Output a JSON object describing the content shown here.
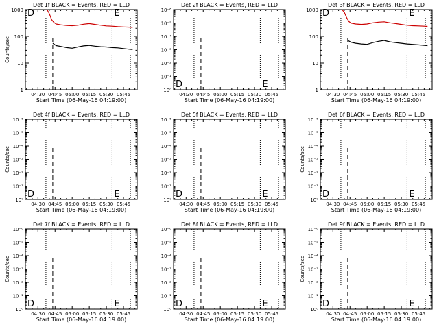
{
  "title_template": "Det {d}f BLACK = Events, RED = LLD",
  "xlabel": "Start Time (06-May-16 04:19:00)",
  "ylabel": "Counts/sec",
  "x_ticks": [
    "04:30",
    "04:45",
    "05:00",
    "05:15",
    "05:30",
    "05:45"
  ],
  "marker_left": "D",
  "marker_right": "E",
  "colors": {
    "events": "#000000",
    "lld": "#cc0000"
  },
  "chart_data": [
    {
      "type": "line",
      "title": "Det 1f BLACK = Events, RED = LLD",
      "xlabel": "Start Time (06-May-16 04:19:00)",
      "ylabel": "Counts/sec",
      "yscale": "log",
      "ylim": [
        1,
        1000
      ],
      "y_ticks": [
        "1",
        "10",
        "100",
        "1000"
      ],
      "xlim": [
        "04:19",
        "05:57"
      ],
      "vlines_dotted": [
        "04:37",
        "05:35",
        "05:51"
      ],
      "vlines_dashed": [
        "04:43"
      ],
      "series": [
        {
          "name": "Events",
          "color": "#000000",
          "x": [
            "04:43",
            "04:46",
            "04:50",
            "04:55",
            "05:00",
            "05:05",
            "05:10",
            "05:15",
            "05:20",
            "05:25",
            "05:30",
            "05:35",
            "05:40",
            "05:45",
            "05:50",
            "05:53"
          ],
          "y": [
            55,
            45,
            42,
            38,
            36,
            40,
            44,
            46,
            43,
            41,
            40,
            38,
            37,
            35,
            33,
            32
          ]
        },
        {
          "name": "LLD",
          "color": "#cc0000",
          "x": [
            "04:38",
            "04:40",
            "04:42",
            "04:44",
            "04:46",
            "04:50",
            "04:55",
            "05:00",
            "05:05",
            "05:10",
            "05:15",
            "05:20",
            "05:25",
            "05:30",
            "05:35",
            "05:40",
            "05:45",
            "05:50",
            "05:53"
          ],
          "y": [
            1000,
            700,
            420,
            330,
            290,
            270,
            255,
            250,
            260,
            285,
            300,
            280,
            260,
            245,
            240,
            230,
            225,
            220,
            215
          ]
        }
      ]
    },
    {
      "type": "line",
      "title": "Det 2f BLACK = Events, RED = LLD",
      "xlabel": "Start Time (06-May-16 04:19:00)",
      "ylabel": "",
      "yscale": "log",
      "ylim": [
        1,
        1e-06
      ],
      "y_ticks": [
        "10⁰",
        "10⁻¹",
        "10⁻²",
        "10⁻³",
        "10⁻⁴",
        "10⁻⁵",
        "10⁻⁶"
      ],
      "xlim": [
        "04:19",
        "05:57"
      ],
      "vlines_dotted": [
        "04:37",
        "05:35",
        "05:51"
      ],
      "vlines_dashed": [
        "04:43"
      ],
      "series": []
    },
    {
      "type": "line",
      "title": "Det 3f BLACK = Events, RED = LLD",
      "xlabel": "Start Time (06-May-16 04:19:00)",
      "ylabel": "",
      "yscale": "log",
      "ylim": [
        1,
        1000
      ],
      "y_ticks": [
        "1",
        "10",
        "100",
        "1000"
      ],
      "xlim": [
        "04:19",
        "05:57"
      ],
      "vlines_dotted": [
        "04:37",
        "05:35",
        "05:51"
      ],
      "vlines_dashed": [
        "04:43"
      ],
      "series": [
        {
          "name": "Events",
          "color": "#000000",
          "x": [
            "04:43",
            "04:46",
            "04:50",
            "04:55",
            "05:00",
            "05:05",
            "05:10",
            "05:15",
            "05:20",
            "05:25",
            "05:30",
            "05:35",
            "05:40",
            "05:45",
            "05:50",
            "05:53"
          ],
          "y": [
            70,
            60,
            55,
            52,
            50,
            58,
            65,
            70,
            62,
            58,
            55,
            52,
            50,
            48,
            46,
            45
          ]
        },
        {
          "name": "LLD",
          "color": "#cc0000",
          "x": [
            "04:38",
            "04:40",
            "04:42",
            "04:44",
            "04:46",
            "04:50",
            "04:55",
            "05:00",
            "05:05",
            "05:10",
            "05:15",
            "05:20",
            "05:25",
            "05:30",
            "05:35",
            "05:40",
            "05:45",
            "05:50",
            "05:53"
          ],
          "y": [
            1000,
            800,
            500,
            360,
            310,
            290,
            280,
            290,
            320,
            340,
            350,
            320,
            300,
            280,
            260,
            250,
            245,
            240,
            235
          ]
        }
      ]
    },
    {
      "type": "line",
      "title": "Det 4f BLACK = Events, RED = LLD",
      "xlabel": "Start Time (06-May-16 04:19:00)",
      "ylabel": "Counts/sec",
      "yscale": "log",
      "ylim": [
        1,
        1e-06
      ],
      "y_ticks": [
        "10⁰",
        "10⁻¹",
        "10⁻²",
        "10⁻³",
        "10⁻⁴",
        "10⁻⁵",
        "10⁻⁶"
      ],
      "xlim": [
        "04:19",
        "05:57"
      ],
      "vlines_dotted": [
        "04:37",
        "05:35",
        "05:51"
      ],
      "vlines_dashed": [
        "04:43"
      ],
      "series": []
    },
    {
      "type": "line",
      "title": "Det 5f BLACK = Events, RED = LLD",
      "xlabel": "Start Time (06-May-16 04:19:00)",
      "ylabel": "",
      "yscale": "log",
      "ylim": [
        1,
        1e-06
      ],
      "y_ticks": [
        "10⁰",
        "10⁻¹",
        "10⁻²",
        "10⁻³",
        "10⁻⁴",
        "10⁻⁵",
        "10⁻⁶"
      ],
      "xlim": [
        "04:19",
        "05:57"
      ],
      "vlines_dotted": [
        "04:37",
        "05:35",
        "05:51"
      ],
      "vlines_dashed": [
        "04:43"
      ],
      "series": []
    },
    {
      "type": "line",
      "title": "Det 6f BLACK = Events, RED = LLD",
      "xlabel": "Start Time (06-May-16 04:19:00)",
      "ylabel": "Counts/sec",
      "yscale": "log",
      "ylim": [
        1,
        1e-06
      ],
      "y_ticks": [
        "10⁰",
        "10⁻¹",
        "10⁻²",
        "10⁻³",
        "10⁻⁴",
        "10⁻⁵",
        "10⁻⁶"
      ],
      "xlim": [
        "04:19",
        "05:57"
      ],
      "vlines_dotted": [
        "04:37",
        "05:35",
        "05:51"
      ],
      "vlines_dashed": [
        "04:43"
      ],
      "series": []
    },
    {
      "type": "line",
      "title": "Det 7f BLACK = Events, RED = LLD",
      "xlabel": "Start Time (06-May-16 04:19:00)",
      "ylabel": "Counts/sec",
      "yscale": "log",
      "ylim": [
        1,
        1e-06
      ],
      "y_ticks": [
        "10⁰",
        "10⁻¹",
        "10⁻²",
        "10⁻³",
        "10⁻⁴",
        "10⁻⁵",
        "10⁻⁶"
      ],
      "xlim": [
        "04:19",
        "05:57"
      ],
      "vlines_dotted": [
        "04:37",
        "05:35",
        "05:51"
      ],
      "vlines_dashed": [
        "04:43"
      ],
      "series": []
    },
    {
      "type": "line",
      "title": "Det 8f BLACK = Events, RED = LLD",
      "xlabel": "Start Time (06-May-16 04:19:00)",
      "ylabel": "",
      "yscale": "log",
      "ylim": [
        1,
        1e-06
      ],
      "y_ticks": [
        "10⁰",
        "10⁻¹",
        "10⁻²",
        "10⁻³",
        "10⁻⁴",
        "10⁻⁵",
        "10⁻⁶"
      ],
      "xlim": [
        "04:19",
        "05:57"
      ],
      "vlines_dotted": [
        "04:37",
        "05:35",
        "05:51"
      ],
      "vlines_dashed": [
        "04:43"
      ],
      "series": []
    },
    {
      "type": "line",
      "title": "Det 9f BLACK = Events, RED = LLD",
      "xlabel": "Start Time (06-May-16 04:19:00)",
      "ylabel": "Counts/sec",
      "yscale": "log",
      "ylim": [
        1,
        1e-06
      ],
      "y_ticks": [
        "10⁰",
        "10⁻¹",
        "10⁻²",
        "10⁻³",
        "10⁻⁴",
        "10⁻⁵",
        "10⁻⁶"
      ],
      "xlim": [
        "04:19",
        "05:57"
      ],
      "vlines_dotted": [
        "04:37",
        "05:35",
        "05:51"
      ],
      "vlines_dashed": [
        "04:43"
      ],
      "series": []
    }
  ]
}
